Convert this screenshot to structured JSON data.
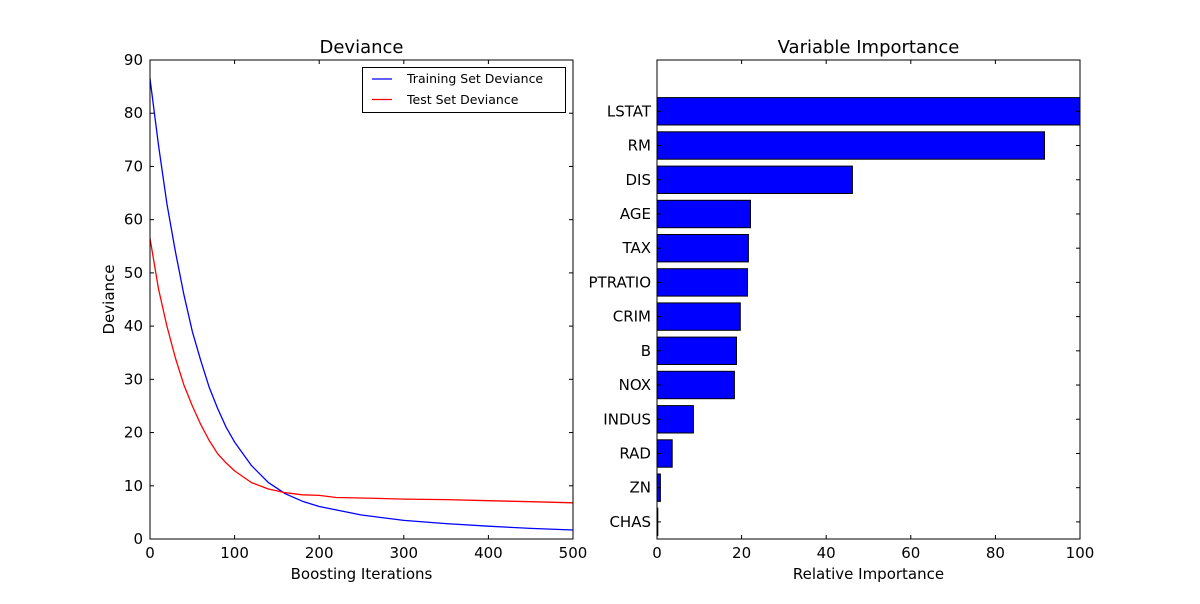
{
  "chart_data": [
    {
      "type": "line",
      "title": "Deviance",
      "xlabel": "Boosting Iterations",
      "ylabel": "Deviance",
      "xlim": [
        0,
        500
      ],
      "ylim": [
        0,
        90
      ],
      "xticks": [
        0,
        100,
        200,
        300,
        400,
        500
      ],
      "yticks": [
        0,
        10,
        20,
        30,
        40,
        50,
        60,
        70,
        80,
        90
      ],
      "grid": false,
      "legend": "top-right",
      "series": [
        {
          "name": "Training Set Deviance",
          "color": "#0000ff",
          "x": [
            0,
            10,
            20,
            30,
            40,
            50,
            60,
            70,
            80,
            90,
            100,
            120,
            140,
            160,
            180,
            200,
            250,
            300,
            350,
            400,
            450,
            500
          ],
          "y": [
            86.5,
            74,
            63,
            54,
            46,
            39,
            33.5,
            28.5,
            24.5,
            21,
            18.2,
            13.8,
            10.6,
            8.5,
            7.1,
            6.1,
            4.5,
            3.5,
            2.9,
            2.4,
            2.0,
            1.7
          ]
        },
        {
          "name": "Test Set Deviance",
          "color": "#ff0000",
          "x": [
            0,
            10,
            20,
            30,
            40,
            50,
            60,
            70,
            80,
            90,
            100,
            120,
            140,
            160,
            180,
            200,
            220,
            250,
            300,
            350,
            400,
            450,
            500
          ],
          "y": [
            56.5,
            47,
            40,
            34,
            29,
            25,
            21.5,
            18.5,
            16,
            14.3,
            12.8,
            10.6,
            9.4,
            8.7,
            8.3,
            8.2,
            7.8,
            7.7,
            7.5,
            7.4,
            7.2,
            7.0,
            6.8
          ]
        }
      ]
    },
    {
      "type": "bar",
      "orientation": "horizontal",
      "title": "Variable Importance",
      "xlabel": "Relative Importance",
      "ylabel": "",
      "xlim": [
        0,
        100
      ],
      "xticks": [
        0,
        20,
        40,
        60,
        80,
        100
      ],
      "grid": false,
      "color": "#0000ff",
      "categories": [
        "CHAS",
        "ZN",
        "RAD",
        "INDUS",
        "NOX",
        "B",
        "CRIM",
        "PTRATIO",
        "TAX",
        "AGE",
        "DIS",
        "RM",
        "LSTAT"
      ],
      "values": [
        0.2,
        0.8,
        3.6,
        8.6,
        18.3,
        18.8,
        19.7,
        21.4,
        21.6,
        22.1,
        46.2,
        91.6,
        100
      ]
    }
  ]
}
